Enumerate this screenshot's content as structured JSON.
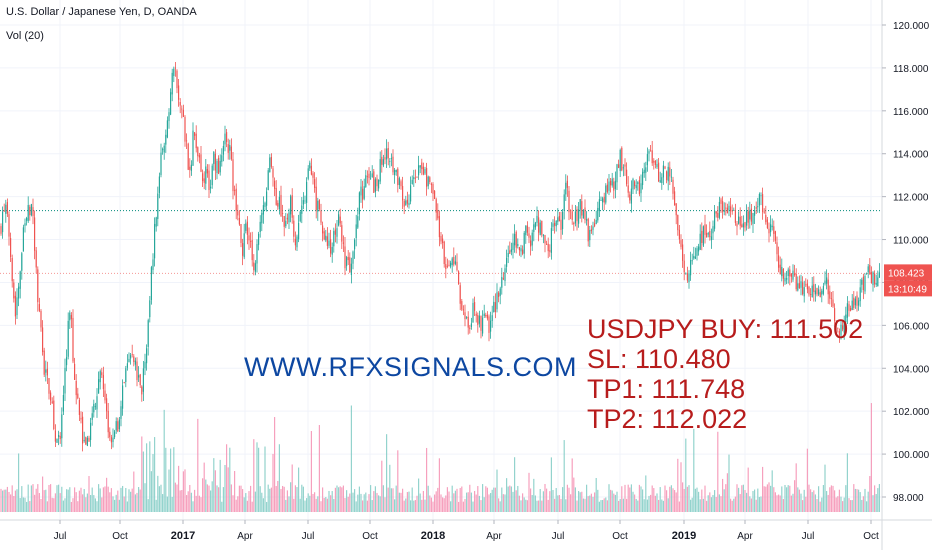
{
  "header": {
    "title": "U.S. Dollar / Japanese Yen, D, OANDA",
    "volume_label": "Vol (20)"
  },
  "annotations": {
    "site": "WWW.RFXSIGNALS.COM",
    "buy": "USDJPY BUY: 111.502",
    "sl": "SL: 110.480",
    "tp1": "TP1: 111.748",
    "tp2": "TP2: 112.022"
  },
  "price_badge": {
    "price": "108.423",
    "countdown": "13:10:49"
  },
  "colors": {
    "up": "#26a69a",
    "down": "#ef5350",
    "up_vol": "#80cbc4",
    "down_vol": "#f48fb1",
    "badge": "#ef5350",
    "hline": "#00897b",
    "site": "#0d47a1",
    "signal": "#b71c1c"
  },
  "chart_data": {
    "type": "candlestick",
    "title": "U.S. Dollar / Japanese Yen, D, OANDA",
    "ylim": [
      97,
      121
    ],
    "y_ticks": [
      "98.000",
      "100.000",
      "102.000",
      "104.000",
      "106.000",
      "108.000",
      "110.000",
      "112.000",
      "114.000",
      "116.000",
      "118.000",
      "120.000"
    ],
    "x_ticks": [
      "Jul",
      "Oct",
      "2017",
      "Apr",
      "Jul",
      "Oct",
      "2018",
      "Apr",
      "Jul",
      "Oct",
      "2019",
      "Apr",
      "Jul",
      "Oct"
    ],
    "horizontal_line": 111.35,
    "last_price": 108.423,
    "close_path": [
      [
        0,
        110.5
      ],
      [
        5,
        111.6
      ],
      [
        10,
        110.0
      ],
      [
        15,
        106.5
      ],
      [
        20,
        108.5
      ],
      [
        25,
        111.0
      ],
      [
        32,
        111.5
      ],
      [
        38,
        107.0
      ],
      [
        44,
        104.0
      ],
      [
        50,
        103.0
      ],
      [
        55,
        101.0
      ],
      [
        60,
        100.5
      ],
      [
        66,
        104.5
      ],
      [
        70,
        107.0
      ],
      [
        74,
        104.0
      ],
      [
        80,
        101.5
      ],
      [
        86,
        100.0
      ],
      [
        90,
        101.0
      ],
      [
        95,
        102.5
      ],
      [
        100,
        104.0
      ],
      [
        106,
        102.0
      ],
      [
        112,
        100.5
      ],
      [
        118,
        101.5
      ],
      [
        124,
        103.5
      ],
      [
        130,
        104.5
      ],
      [
        136,
        104.0
      ],
      [
        142,
        103.0
      ],
      [
        148,
        106.0
      ],
      [
        154,
        110.0
      ],
      [
        158,
        112.5
      ],
      [
        162,
        114.0
      ],
      [
        166,
        114.5
      ],
      [
        170,
        117.0
      ],
      [
        174,
        118.3
      ],
      [
        178,
        117.0
      ],
      [
        182,
        116.0
      ],
      [
        186,
        114.5
      ],
      [
        190,
        113.0
      ],
      [
        194,
        115.5
      ],
      [
        198,
        114.0
      ],
      [
        202,
        112.5
      ],
      [
        206,
        113.5
      ],
      [
        210,
        112.0
      ],
      [
        214,
        114.0
      ],
      [
        218,
        113.0
      ],
      [
        222,
        114.0
      ],
      [
        226,
        115.0
      ],
      [
        230,
        114.0
      ],
      [
        234,
        112.0
      ],
      [
        238,
        111.0
      ],
      [
        242,
        109.5
      ],
      [
        246,
        110.5
      ],
      [
        250,
        110.0
      ],
      [
        255,
        108.7
      ],
      [
        260,
        110.5
      ],
      [
        265,
        112.0
      ],
      [
        270,
        114.0
      ],
      [
        275,
        112.0
      ],
      [
        280,
        111.5
      ],
      [
        285,
        110.5
      ],
      [
        290,
        112.0
      ],
      [
        295,
        110.0
      ],
      [
        300,
        111.0
      ],
      [
        305,
        112.0
      ],
      [
        310,
        113.5
      ],
      [
        315,
        112.0
      ],
      [
        320,
        111.0
      ],
      [
        325,
        110.0
      ],
      [
        330,
        109.5
      ],
      [
        335,
        110.5
      ],
      [
        340,
        111.0
      ],
      [
        345,
        109.0
      ],
      [
        350,
        108.5
      ],
      [
        355,
        110.0
      ],
      [
        360,
        112.0
      ],
      [
        365,
        112.5
      ],
      [
        370,
        113.0
      ],
      [
        375,
        112.5
      ],
      [
        380,
        113.5
      ],
      [
        385,
        114.0
      ],
      [
        390,
        113.5
      ],
      [
        395,
        113.0
      ],
      [
        400,
        112.5
      ],
      [
        405,
        111.5
      ],
      [
        410,
        112.0
      ],
      [
        415,
        113.0
      ],
      [
        420,
        113.5
      ],
      [
        425,
        113.0
      ],
      [
        430,
        112.5
      ],
      [
        435,
        111.5
      ],
      [
        440,
        110.0
      ],
      [
        445,
        109.0
      ],
      [
        450,
        108.5
      ],
      [
        455,
        109.5
      ],
      [
        460,
        107.0
      ],
      [
        465,
        106.5
      ],
      [
        470,
        106.0
      ],
      [
        475,
        107.0
      ],
      [
        480,
        106.0
      ],
      [
        485,
        106.5
      ],
      [
        490,
        105.8
      ],
      [
        495,
        107.0
      ],
      [
        500,
        107.5
      ],
      [
        505,
        108.5
      ],
      [
        510,
        109.5
      ],
      [
        515,
        110.0
      ],
      [
        520,
        109.0
      ],
      [
        525,
        110.5
      ],
      [
        530,
        110.0
      ],
      [
        535,
        111.0
      ],
      [
        540,
        110.5
      ],
      [
        545,
        110.0
      ],
      [
        550,
        109.8
      ],
      [
        555,
        111.0
      ],
      [
        560,
        110.5
      ],
      [
        565,
        112.5
      ],
      [
        570,
        111.5
      ],
      [
        575,
        111.0
      ],
      [
        580,
        111.5
      ],
      [
        585,
        111.0
      ],
      [
        590,
        110.0
      ],
      [
        595,
        111.0
      ],
      [
        600,
        111.5
      ],
      [
        605,
        112.0
      ],
      [
        610,
        113.0
      ],
      [
        615,
        112.5
      ],
      [
        620,
        114.0
      ],
      [
        625,
        113.0
      ],
      [
        630,
        112.0
      ],
      [
        635,
        113.0
      ],
      [
        640,
        112.5
      ],
      [
        645,
        113.5
      ],
      [
        650,
        114.0
      ],
      [
        655,
        113.5
      ],
      [
        660,
        113.0
      ],
      [
        665,
        113.2
      ],
      [
        670,
        113.0
      ],
      [
        675,
        111.5
      ],
      [
        680,
        110.0
      ],
      [
        685,
        108.0
      ],
      [
        690,
        108.5
      ],
      [
        695,
        109.5
      ],
      [
        700,
        110.0
      ],
      [
        705,
        110.5
      ],
      [
        710,
        110.0
      ],
      [
        715,
        111.0
      ],
      [
        720,
        111.5
      ],
      [
        725,
        111.0
      ],
      [
        730,
        111.5
      ],
      [
        735,
        111.0
      ],
      [
        740,
        110.5
      ],
      [
        745,
        111.0
      ],
      [
        750,
        111.0
      ],
      [
        755,
        111.5
      ],
      [
        760,
        111.8
      ],
      [
        765,
        111.3
      ],
      [
        770,
        110.5
      ],
      [
        775,
        110.0
      ],
      [
        780,
        108.5
      ],
      [
        785,
        108.5
      ],
      [
        790,
        108.0
      ],
      [
        795,
        108.2
      ],
      [
        800,
        107.8
      ],
      [
        805,
        108.0
      ],
      [
        810,
        107.5
      ],
      [
        815,
        107.8
      ],
      [
        820,
        107.5
      ],
      [
        825,
        108.0
      ],
      [
        830,
        107.5
      ],
      [
        835,
        106.2
      ],
      [
        840,
        105.8
      ],
      [
        845,
        106.5
      ],
      [
        850,
        106.8
      ],
      [
        855,
        107.0
      ],
      [
        860,
        107.5
      ],
      [
        865,
        108.0
      ],
      [
        870,
        108.5
      ],
      [
        875,
        108.0
      ],
      [
        880,
        108.4
      ]
    ]
  }
}
